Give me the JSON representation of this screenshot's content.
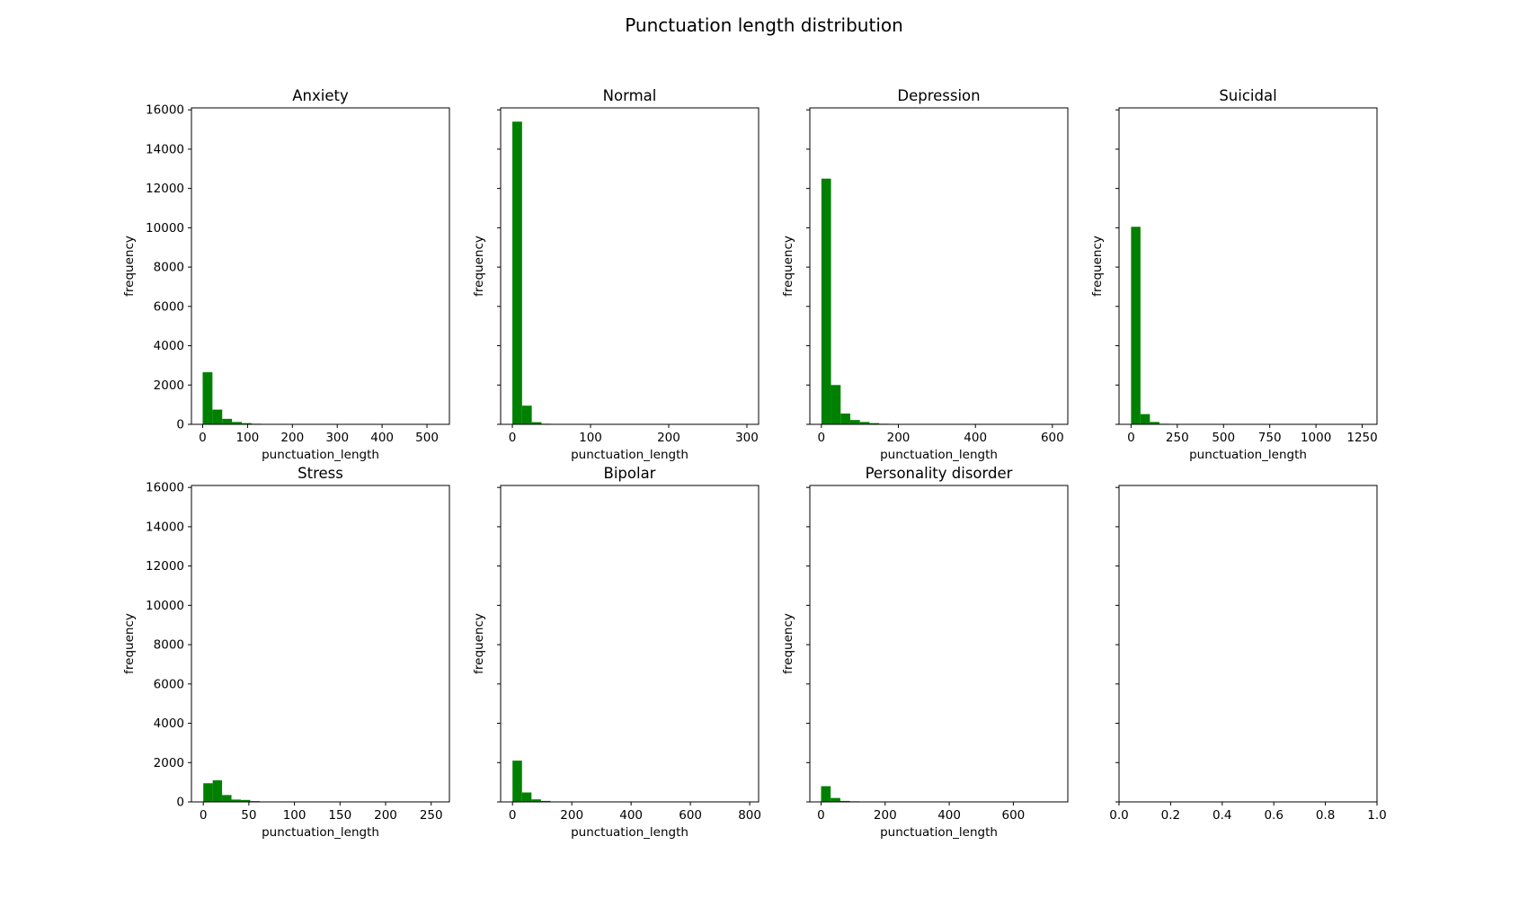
{
  "figure_title": "Punctuation length distribution",
  "colors": {
    "bar": "#008000",
    "axis": "#000000",
    "background": "#ffffff"
  },
  "chart_data": [
    {
      "type": "bar",
      "title": "Anxiety",
      "xlabel": "punctuation_length",
      "ylabel": "frequency",
      "xlim": [
        -25,
        550
      ],
      "ylim": [
        0,
        16100
      ],
      "xticks": [
        0,
        100,
        200,
        300,
        400,
        500
      ],
      "yticks": [
        0,
        2000,
        4000,
        6000,
        8000,
        10000,
        12000,
        14000,
        16000
      ],
      "bin_start": 0,
      "bin_width": 21.8,
      "counts": [
        2650,
        750,
        280,
        120,
        60,
        30,
        0,
        0,
        0,
        0,
        0,
        0,
        0,
        0,
        0,
        0,
        0,
        0,
        0,
        0,
        0,
        0,
        0,
        0,
        0
      ]
    },
    {
      "type": "bar",
      "title": "Normal",
      "xlabel": "punctuation_length",
      "ylabel": "frequency",
      "xlim": [
        -15,
        315
      ],
      "ylim": [
        0,
        16100
      ],
      "xticks": [
        0,
        100,
        200,
        300
      ],
      "yticks": [
        0,
        2000,
        4000,
        6000,
        8000,
        10000,
        12000,
        14000,
        16000
      ],
      "bin_start": 0,
      "bin_width": 12.4,
      "counts": [
        15400,
        950,
        110,
        30,
        0,
        0,
        0,
        0,
        0,
        0,
        0,
        0,
        0,
        0,
        0,
        0,
        0,
        0,
        0,
        0,
        0,
        0,
        0,
        0,
        0
      ]
    },
    {
      "type": "bar",
      "title": "Depression",
      "xlabel": "punctuation_length",
      "ylabel": "frequency",
      "xlim": [
        -30,
        640
      ],
      "ylim": [
        0,
        16100
      ],
      "xticks": [
        0,
        200,
        400,
        600
      ],
      "yticks": [
        0,
        2000,
        4000,
        6000,
        8000,
        10000,
        12000,
        14000,
        16000
      ],
      "bin_start": 0,
      "bin_width": 25,
      "counts": [
        12500,
        2000,
        550,
        220,
        120,
        60,
        30,
        0,
        0,
        0,
        0,
        0,
        0,
        0,
        0,
        0,
        0,
        0,
        0,
        0,
        0,
        0,
        0,
        0,
        0
      ]
    },
    {
      "type": "bar",
      "title": "Suicidal",
      "xlabel": "punctuation_length",
      "ylabel": "frequency",
      "xlim": [
        -65,
        1330
      ],
      "ylim": [
        0,
        16100
      ],
      "xticks": [
        0,
        250,
        500,
        750,
        1000,
        1250
      ],
      "yticks": [
        0,
        2000,
        4000,
        6000,
        8000,
        10000,
        12000,
        14000,
        16000
      ],
      "bin_start": 0,
      "bin_width": 51,
      "counts": [
        10050,
        520,
        120,
        30,
        0,
        0,
        0,
        0,
        0,
        0,
        0,
        0,
        0,
        0,
        0,
        0,
        0,
        0,
        0,
        0,
        0,
        0,
        0,
        0,
        0
      ]
    },
    {
      "type": "bar",
      "title": "Stress",
      "xlabel": "punctuation_length",
      "ylabel": "frequency",
      "xlim": [
        -13,
        270
      ],
      "ylim": [
        0,
        16100
      ],
      "xticks": [
        0,
        50,
        100,
        150,
        200,
        250
      ],
      "yticks": [
        0,
        2000,
        4000,
        6000,
        8000,
        10000,
        12000,
        14000,
        16000
      ],
      "bin_start": 0,
      "bin_width": 10.3,
      "counts": [
        950,
        1100,
        350,
        120,
        100,
        40,
        0,
        0,
        0,
        0,
        0,
        0,
        0,
        0,
        0,
        0,
        0,
        0,
        0,
        0,
        0,
        0,
        0,
        0,
        0
      ]
    },
    {
      "type": "bar",
      "title": "Bipolar",
      "xlabel": "punctuation_length",
      "ylabel": "frequency",
      "xlim": [
        -40,
        830
      ],
      "ylim": [
        0,
        16100
      ],
      "xticks": [
        0,
        200,
        400,
        600,
        800
      ],
      "yticks": [
        0,
        2000,
        4000,
        6000,
        8000,
        10000,
        12000,
        14000,
        16000
      ],
      "bin_start": 0,
      "bin_width": 32,
      "counts": [
        2100,
        480,
        130,
        50,
        20,
        0,
        0,
        0,
        0,
        0,
        0,
        0,
        0,
        0,
        0,
        0,
        0,
        0,
        0,
        0,
        0,
        0,
        0,
        0,
        0
      ]
    },
    {
      "type": "bar",
      "title": "Personality disorder",
      "xlabel": "punctuation_length",
      "ylabel": "frequency",
      "xlim": [
        -35,
        770
      ],
      "ylim": [
        0,
        16100
      ],
      "xticks": [
        0,
        200,
        400,
        600
      ],
      "yticks": [
        0,
        2000,
        4000,
        6000,
        8000,
        10000,
        12000,
        14000,
        16000
      ],
      "bin_start": 0,
      "bin_width": 30,
      "counts": [
        800,
        200,
        50,
        30,
        0,
        0,
        0,
        0,
        0,
        0,
        0,
        0,
        0,
        0,
        0,
        0,
        0,
        0,
        0,
        0,
        0,
        0,
        0,
        0,
        0
      ]
    },
    {
      "type": "bar",
      "title": "",
      "xlabel": "",
      "ylabel": "",
      "xlim": [
        0,
        1
      ],
      "ylim": [
        0,
        16100
      ],
      "xticks": [
        0.0,
        0.2,
        0.4,
        0.6,
        0.8,
        1.0
      ],
      "xtick_labels": [
        "0.0",
        "0.2",
        "0.4",
        "0.6",
        "0.8",
        "1.0"
      ],
      "yticks": [
        0,
        2000,
        4000,
        6000,
        8000,
        10000,
        12000,
        14000,
        16000
      ],
      "bin_start": 0,
      "bin_width": 0,
      "counts": []
    }
  ]
}
